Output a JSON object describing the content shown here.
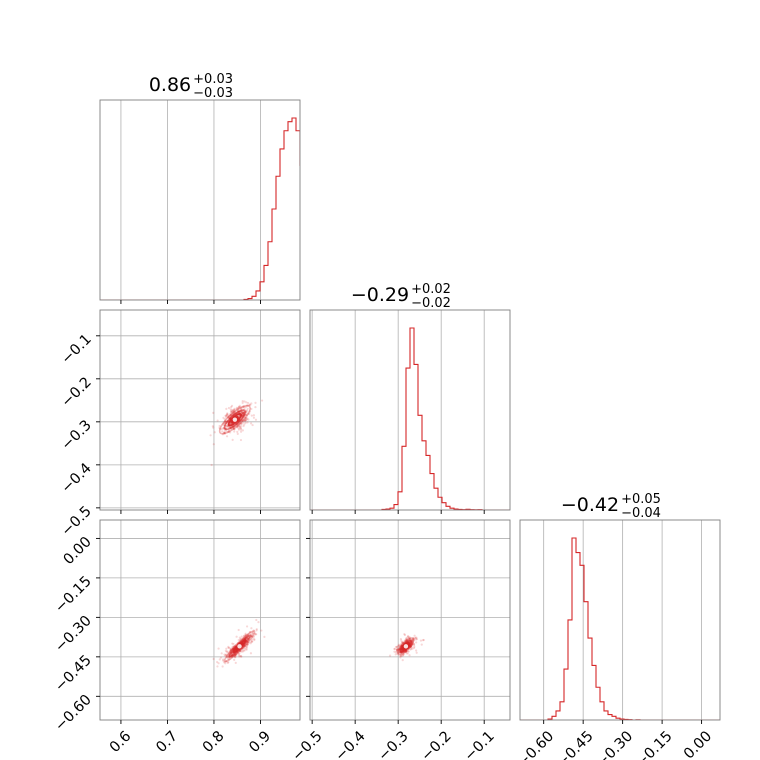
{
  "chart_data": {
    "type": "corner",
    "color": "#d62728",
    "grid": true,
    "titles": [
      {
        "value": "0.86",
        "plus": "+0.03",
        "minus": "−0.03"
      },
      {
        "value": "−0.29",
        "plus": "+0.02",
        "minus": "−0.02"
      },
      {
        "value": "−0.42",
        "plus": "+0.05",
        "minus": "−0.04"
      }
    ],
    "params": [
      {
        "range": [
          0.555,
          0.985
        ],
        "ticks": [
          0.6,
          0.7,
          0.8,
          0.9
        ],
        "tick_labels": [
          "0.6",
          "0.7",
          "0.8",
          "0.9"
        ],
        "hist_start": 0.555,
        "hist_bin": 0.0086,
        "hist": [
          0,
          0,
          0,
          0,
          0,
          0,
          0,
          0,
          0,
          0,
          0,
          0,
          0,
          0,
          0,
          0,
          0,
          0,
          0,
          0,
          0,
          0,
          0,
          0,
          0,
          0,
          0,
          0,
          0,
          0,
          0,
          0,
          0,
          0,
          0,
          0,
          0.3,
          0.8,
          2,
          5,
          10,
          19,
          32,
          50,
          68,
          83,
          93,
          98,
          100,
          93,
          74,
          48,
          30,
          17,
          10,
          5,
          2.5,
          1,
          0.5,
          0.2,
          0.1,
          0,
          0,
          0,
          0,
          0,
          0,
          0,
          0,
          0,
          0,
          0,
          0,
          0,
          0,
          0,
          0,
          0,
          0,
          0,
          0,
          0,
          0,
          0,
          0,
          0,
          0,
          0,
          0,
          0,
          0,
          0,
          0,
          0,
          0,
          0,
          0,
          0,
          0,
          0
        ]
      },
      {
        "range": [
          -0.505,
          -0.04
        ],
        "ticks": [
          -0.5,
          -0.4,
          -0.3,
          -0.2,
          -0.1
        ],
        "tick_labels": [
          "−0.5",
          "−0.4",
          "−0.3",
          "−0.2",
          "−0.1"
        ],
        "hist_start": -0.505,
        "hist_bin": 0.0093,
        "hist": [
          0,
          0,
          0,
          0,
          0,
          0,
          0,
          0,
          0,
          0,
          0,
          0,
          0,
          0,
          0,
          0,
          0,
          0,
          0.3,
          0.5,
          1,
          3,
          10,
          35,
          78,
          100,
          80,
          52,
          38,
          30,
          20,
          12,
          7,
          4,
          2,
          1,
          0.5,
          0.3,
          0.2,
          0.4,
          0.2,
          0.1,
          0.2,
          0,
          0,
          0,
          0,
          0,
          0,
          0,
          0,
          0,
          0,
          0,
          0,
          0,
          0,
          0,
          0,
          0,
          0,
          0,
          0,
          0,
          0,
          0,
          0,
          0,
          0,
          0
        ]
      },
      {
        "range": [
          -0.69,
          0.07
        ],
        "ticks": [
          -0.6,
          -0.45,
          -0.3,
          -0.15,
          0.0
        ],
        "tick_labels": [
          "−0.60",
          "−0.45",
          "−0.30",
          "−0.15",
          "0.00"
        ],
        "hist_start": -0.69,
        "hist_bin": 0.0152,
        "hist": [
          0,
          0,
          0,
          0,
          0,
          0,
          0,
          0.5,
          2,
          5,
          10,
          28,
          55,
          100,
          92,
          85,
          65,
          45,
          30,
          18,
          10,
          5,
          3,
          2,
          1,
          0.5,
          0.3,
          0.2,
          0,
          0.1,
          0,
          0,
          0,
          0,
          0,
          0,
          0,
          0,
          0,
          0,
          0,
          0,
          0,
          0,
          0,
          0,
          0,
          0,
          0,
          0
        ]
      }
    ],
    "pairs": [
      {
        "x": 0,
        "y": 1,
        "center": [
          0.845,
          -0.295
        ],
        "slope": 1.0,
        "sd_major": 0.02,
        "sd_minor": 0.0065
      },
      {
        "x": 0,
        "y": 2,
        "center": [
          0.855,
          -0.41
        ],
        "slope": 1.85,
        "sd_major": 0.03,
        "sd_minor": 0.004
      },
      {
        "x": 1,
        "y": 2,
        "center": [
          -0.282,
          -0.41
        ],
        "slope": 1.95,
        "sd_major": 0.016,
        "sd_minor": 0.0045
      }
    ]
  }
}
